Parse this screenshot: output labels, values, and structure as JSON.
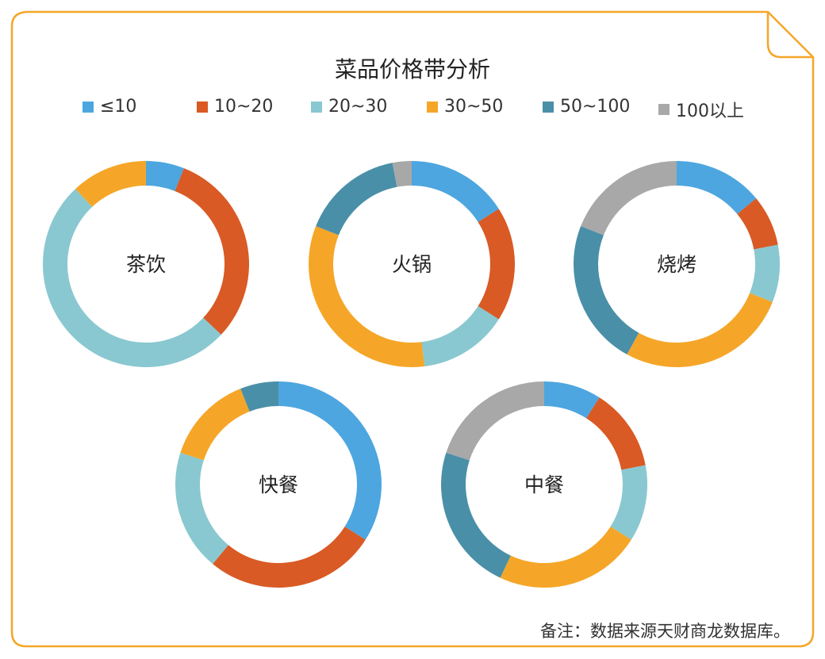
{
  "chart_data": {
    "type": "pie",
    "title": "菜品价格带分析",
    "legend_position": "top",
    "price_bands": [
      "≤10",
      "10~20",
      "20~30",
      "30~50",
      "50~100",
      "100以上"
    ],
    "colors": [
      "#4da6df",
      "#d95a24",
      "#89c8d0",
      "#f5a628",
      "#4a8fa8",
      "#a8a8a8"
    ],
    "donuts": [
      {
        "name": "茶饮",
        "values": [
          6,
          31,
          51,
          12,
          0,
          0
        ]
      },
      {
        "name": "火锅",
        "values": [
          16,
          18,
          14,
          33,
          16,
          3
        ]
      },
      {
        "name": "烧烤",
        "values": [
          14,
          8,
          9,
          27,
          23,
          19
        ]
      },
      {
        "name": "快餐",
        "values": [
          34,
          27,
          19,
          14,
          6,
          0
        ]
      },
      {
        "name": "中餐",
        "values": [
          9,
          13,
          12,
          23,
          23,
          20
        ]
      }
    ]
  },
  "footer": {
    "note": "备注：数据来源天财商龙数据库。"
  },
  "theme": {
    "frame_color": "#f5a628"
  }
}
